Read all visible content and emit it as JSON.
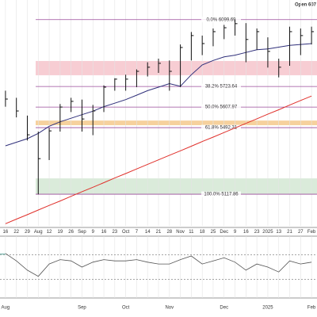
{
  "chart_data": {
    "type": "ohlc",
    "header_text": "Open 607",
    "categories": [
      "16",
      "22",
      "29",
      "Aug",
      "12",
      "19",
      "26",
      "Sep",
      "9",
      "16",
      "23",
      "Oct",
      "7",
      "14",
      "21",
      "28",
      "Nov",
      "11",
      "18",
      "25",
      "Dec",
      "9",
      "16",
      "23",
      "2025",
      "13",
      "21",
      "27",
      "Feb"
    ],
    "bottom_categories": [
      "Aug",
      null,
      null,
      null,
      null,
      null,
      null,
      "Sep",
      null,
      null,
      null,
      "Oct",
      null,
      null,
      null,
      "Nov",
      null,
      null,
      null,
      null,
      "Dec",
      null,
      null,
      null,
      "2025",
      null,
      null,
      null,
      "Feb"
    ],
    "ylim": [
      4940,
      6210
    ],
    "bar_color": "#111111",
    "high": [
      5700,
      5660,
      5560,
      5470,
      5490,
      5625,
      5660,
      5650,
      5620,
      5730,
      5770,
      5790,
      5820,
      5860,
      5880,
      5870,
      5960,
      6030,
      6010,
      6050,
      6070,
      6099,
      6080,
      6050,
      6000,
      5880,
      6060,
      6050,
      6060
    ],
    "low": [
      5610,
      5550,
      5420,
      5117,
      5310,
      5470,
      5580,
      5470,
      5450,
      5580,
      5700,
      5700,
      5720,
      5780,
      5800,
      5700,
      5720,
      5870,
      5900,
      5950,
      5990,
      6010,
      5860,
      5930,
      5830,
      5775,
      5840,
      5900,
      5960
    ],
    "close": [
      5653,
      5586,
      5452,
      5318,
      5474,
      5608,
      5640,
      5541,
      5586,
      5720,
      5765,
      5765,
      5809,
      5832,
      5854,
      5809,
      5943,
      6010,
      5965,
      6032,
      6054,
      6077,
      5988,
      6032,
      5921,
      5832,
      6032,
      6010,
      6032
    ],
    "series": [
      {
        "color": "#2f2f7a",
        "values": [
          5390,
          5410,
          5430,
          5460,
          5500,
          5525,
          5545,
          5565,
          5585,
          5610,
          5630,
          5650,
          5675,
          5700,
          5720,
          5740,
          5725,
          5790,
          5845,
          5870,
          5890,
          5900,
          5915,
          5930,
          5935,
          5945,
          5955,
          5960,
          5965
        ]
      },
      {
        "color": "#e0302b",
        "values": [
          4952,
          4978,
          5003,
          5029,
          5055,
          5080,
          5106,
          5132,
          5157,
          5183,
          5209,
          5234,
          5260,
          5286,
          5311,
          5337,
          5362,
          5388,
          5414,
          5439,
          5465,
          5491,
          5516,
          5542,
          5568,
          5593,
          5619,
          5645,
          5670
        ]
      }
    ],
    "fib_color": "#9a4a9a",
    "fib_levels": [
      {
        "value": 6099.69,
        "label": "0.0% 6099.69"
      },
      {
        "value": 5723.64,
        "label": "38.2% 5723.64"
      },
      {
        "value": 5607.97,
        "label": "50.0% 5607.97"
      },
      {
        "value": 5492.31,
        "label": "61.8% 5492.31"
      },
      {
        "value": 5117.86,
        "label": "100.0% 5117.86"
      }
    ],
    "zones": [
      {
        "from": 5787,
        "to": 5867,
        "color": "#f6c4cb"
      },
      {
        "from": 5506,
        "to": 5532,
        "color": "#f5c98c"
      },
      {
        "from": 5117,
        "to": 5207,
        "color": "#d3e8d3"
      }
    ],
    "rsi": {
      "color": "#555555",
      "ylim": [
        0,
        100
      ],
      "levels": [
        70,
        30
      ],
      "values": [
        72,
        60,
        45,
        35,
        55,
        62,
        60,
        50,
        58,
        62,
        60,
        60,
        62,
        58,
        55,
        55,
        62,
        68,
        55,
        60,
        65,
        58,
        45,
        55,
        50,
        42,
        60,
        55,
        58
      ]
    }
  }
}
